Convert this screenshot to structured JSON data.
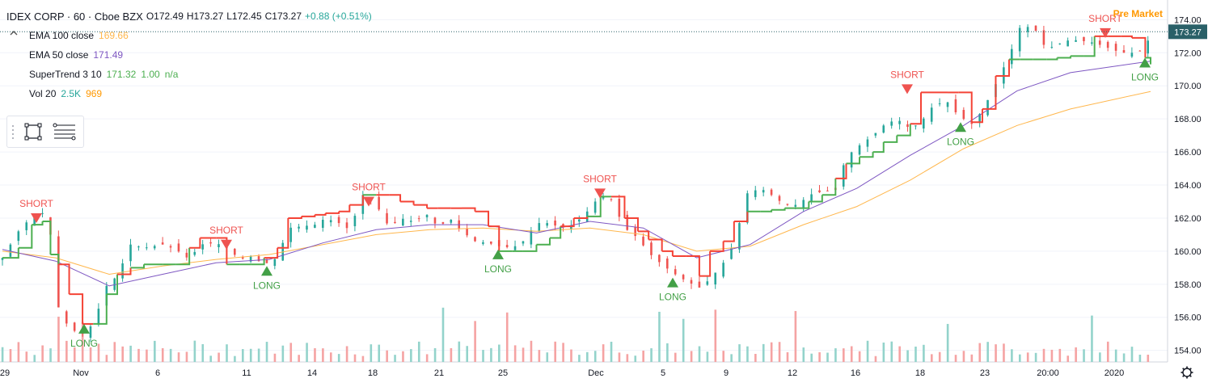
{
  "header": {
    "symbol_line": "IDEX CORP · 60 · Cboe BZX",
    "open": "O172.49",
    "high": "H173.27",
    "low": "L172.45",
    "close": "C173.27",
    "change": "+0.88 (+0.51%)"
  },
  "indicators": [
    {
      "label": "EMA 100 close",
      "values": [
        "169.66"
      ],
      "colors": [
        "#ffb74d"
      ]
    },
    {
      "label": "EMA 50 close",
      "values": [
        "171.49"
      ],
      "colors": [
        "#7e57c2"
      ]
    },
    {
      "label": "SuperTrend 3 10",
      "values": [
        "171.32",
        "1.00",
        "n/a"
      ],
      "colors": [
        "#4caf50",
        "#4caf50",
        "#4caf50"
      ]
    },
    {
      "label": "Vol 20",
      "values": [
        "2.5K",
        "969"
      ],
      "colors": [
        "#26a69a",
        "#ff9800"
      ]
    }
  ],
  "premarket_label": "Pre Market",
  "colors": {
    "up": "#26a69a",
    "down": "#ef5350",
    "up_vol": "#93d3cb",
    "down_vol": "#f5a3a3",
    "supertrend_up": "#4caf50",
    "supertrend_down": "#f44336",
    "ema100": "#ffb74d",
    "ema50": "#7e57c2",
    "price_tag": "#2a6068",
    "grid": "#f0f3fa",
    "axis_text": "#131722"
  },
  "icons": [
    "collapse-arrow-icon",
    "rectangle-tool-icon",
    "fib-tool-icon",
    "settings-gear-icon"
  ],
  "chart_data": {
    "type": "candlestick",
    "title": "IDEX CORP · 60 · Cboe BZX",
    "y_axis": {
      "ticks": [
        "174.00",
        "172.00",
        "170.00",
        "168.00",
        "166.00",
        "164.00",
        "162.00",
        "160.00",
        "158.00",
        "156.00",
        "154.00"
      ],
      "range": [
        153.3,
        174.8
      ],
      "position": "right"
    },
    "x_axis": {
      "ticks": [
        "29",
        "Nov",
        "6",
        "11",
        "14",
        "18",
        "21",
        "25",
        "Dec",
        "5",
        "9",
        "12",
        "16",
        "18",
        "23",
        "20:00",
        "2020"
      ]
    },
    "last_price_tag": "173.27",
    "signals": [
      {
        "label": "SHORT",
        "kind": "short",
        "near": "29",
        "price": 161.8
      },
      {
        "label": "LONG",
        "kind": "long",
        "near": "Nov",
        "price": 155.6
      },
      {
        "label": "SHORT",
        "kind": "short",
        "near": "6",
        "price": 160.2
      },
      {
        "label": "LONG",
        "kind": "long",
        "near": "11",
        "price": 159.1
      },
      {
        "label": "SHORT",
        "kind": "short",
        "near": "18",
        "price": 162.8
      },
      {
        "label": "LONG",
        "kind": "long",
        "near": "25",
        "price": 160.1
      },
      {
        "label": "SHORT",
        "kind": "short",
        "near": "Dec",
        "price": 163.3
      },
      {
        "label": "LONG",
        "kind": "long",
        "near": "5",
        "price": 158.4
      },
      {
        "label": "SHORT",
        "kind": "short",
        "near": "18",
        "price": 169.6
      },
      {
        "label": "LONG",
        "kind": "long",
        "near": "18",
        "price": 167.8
      },
      {
        "label": "SHORT",
        "kind": "short",
        "near": "20:00",
        "price": 173.0
      },
      {
        "label": "LONG",
        "kind": "long",
        "near": "2020",
        "price": 171.7
      }
    ],
    "price_path": [
      [
        0,
        159.6
      ],
      [
        6,
        161.2
      ],
      [
        11,
        162.1
      ],
      [
        15,
        162.3
      ],
      [
        18,
        161.0
      ],
      [
        21,
        156.6
      ],
      [
        25,
        155.3
      ],
      [
        30,
        155.0
      ],
      [
        34,
        155.6
      ],
      [
        39,
        157.9
      ],
      [
        43,
        158.5
      ],
      [
        48,
        160.4
      ],
      [
        53,
        160.2
      ],
      [
        60,
        160.4
      ],
      [
        65,
        160.1
      ],
      [
        70,
        159.5
      ],
      [
        74,
        160.4
      ],
      [
        80,
        160.5
      ],
      [
        84,
        160.2
      ],
      [
        89,
        159.5
      ],
      [
        93,
        159.7
      ],
      [
        98,
        159.2
      ],
      [
        103,
        159.6
      ],
      [
        107,
        161.4
      ],
      [
        112,
        161.5
      ],
      [
        117,
        161.6
      ],
      [
        121,
        162.0
      ],
      [
        126,
        161.7
      ],
      [
        130,
        161.3
      ],
      [
        135,
        163.4
      ],
      [
        140,
        162.8
      ],
      [
        145,
        161.4
      ],
      [
        149,
        162.0
      ],
      [
        154,
        161.8
      ],
      [
        159,
        162.2
      ],
      [
        163,
        161.5
      ],
      [
        168,
        161.9
      ],
      [
        172,
        161.2
      ],
      [
        177,
        160.6
      ],
      [
        182,
        160.5
      ],
      [
        186,
        160.3
      ],
      [
        191,
        160.2
      ],
      [
        195,
        160.6
      ],
      [
        200,
        161.7
      ],
      [
        205,
        161.7
      ],
      [
        209,
        161.4
      ],
      [
        214,
        161.6
      ],
      [
        219,
        162.4
      ],
      [
        224,
        163.4
      ],
      [
        228,
        163.1
      ],
      [
        233,
        161.4
      ],
      [
        238,
        160.8
      ],
      [
        242,
        159.9
      ],
      [
        247,
        159.2
      ],
      [
        251,
        158.7
      ],
      [
        256,
        158.2
      ],
      [
        261,
        157.8
      ],
      [
        265,
        158.3
      ],
      [
        270,
        159.3
      ],
      [
        274,
        160.5
      ],
      [
        279,
        163.5
      ],
      [
        284,
        163.8
      ],
      [
        288,
        163.4
      ],
      [
        293,
        162.8
      ],
      [
        298,
        162.8
      ],
      [
        302,
        163.4
      ],
      [
        307,
        163.6
      ],
      [
        312,
        163.7
      ],
      [
        316,
        165.7
      ],
      [
        321,
        166.4
      ],
      [
        326,
        167.0
      ],
      [
        330,
        167.6
      ],
      [
        335,
        168.0
      ],
      [
        340,
        167.4
      ],
      [
        344,
        167.8
      ],
      [
        349,
        168.9
      ],
      [
        354,
        169.0
      ],
      [
        358,
        168.2
      ],
      [
        363,
        167.7
      ],
      [
        367,
        168.5
      ],
      [
        372,
        170.1
      ],
      [
        377,
        171.8
      ],
      [
        381,
        173.5
      ],
      [
        386,
        173.6
      ],
      [
        391,
        172.2
      ],
      [
        395,
        172.5
      ],
      [
        400,
        172.8
      ],
      [
        405,
        172.7
      ],
      [
        409,
        172.6
      ],
      [
        414,
        172.3
      ],
      [
        419,
        172.0
      ],
      [
        423,
        172.0
      ],
      [
        428,
        172.2
      ],
      [
        430,
        173.27
      ]
    ],
    "supertrend_path": [
      [
        0,
        159.6
      ],
      [
        6,
        160.2
      ],
      [
        11,
        161.6
      ],
      [
        15,
        161.8
      ],
      [
        18,
        159.8
      ],
      [
        21,
        159.2
      ],
      [
        25,
        157.4
      ],
      [
        30,
        155.6
      ],
      [
        34,
        155.6
      ],
      [
        39,
        157.4
      ],
      [
        43,
        158.6
      ],
      [
        48,
        159.0
      ],
      [
        53,
        159.2
      ],
      [
        60,
        159.2
      ],
      [
        65,
        159.2
      ],
      [
        70,
        160.2
      ],
      [
        74,
        160.8
      ],
      [
        80,
        160.8
      ],
      [
        84,
        159.2
      ],
      [
        89,
        159.2
      ],
      [
        93,
        159.2
      ],
      [
        98,
        159.6
      ],
      [
        103,
        160.2
      ],
      [
        107,
        162.0
      ],
      [
        112,
        162.1
      ],
      [
        117,
        162.2
      ],
      [
        121,
        162.3
      ],
      [
        126,
        162.4
      ],
      [
        130,
        162.8
      ],
      [
        135,
        163.4
      ],
      [
        140,
        163.4
      ],
      [
        145,
        163.4
      ],
      [
        149,
        163.0
      ],
      [
        154,
        162.8
      ],
      [
        159,
        162.6
      ],
      [
        163,
        162.6
      ],
      [
        168,
        162.6
      ],
      [
        172,
        162.6
      ],
      [
        177,
        162.4
      ],
      [
        182,
        161.5
      ],
      [
        186,
        160.0
      ],
      [
        191,
        160.0
      ],
      [
        195,
        160.0
      ],
      [
        200,
        160.4
      ],
      [
        205,
        160.8
      ],
      [
        209,
        161.5
      ],
      [
        214,
        162.0
      ],
      [
        219,
        162.1
      ],
      [
        224,
        163.3
      ],
      [
        228,
        163.3
      ],
      [
        233,
        162.0
      ],
      [
        238,
        161.2
      ],
      [
        242,
        160.7
      ],
      [
        247,
        160.0
      ],
      [
        251,
        159.7
      ],
      [
        256,
        159.7
      ],
      [
        261,
        158.5
      ],
      [
        265,
        160.0
      ],
      [
        270,
        160.6
      ],
      [
        274,
        161.8
      ],
      [
        279,
        162.4
      ],
      [
        284,
        162.4
      ],
      [
        288,
        162.5
      ],
      [
        293,
        162.6
      ],
      [
        302,
        163.0
      ],
      [
        307,
        163.4
      ],
      [
        312,
        164.4
      ],
      [
        316,
        165.3
      ],
      [
        321,
        165.7
      ],
      [
        326,
        166.0
      ],
      [
        330,
        166.6
      ],
      [
        335,
        167.0
      ],
      [
        340,
        167.7
      ],
      [
        344,
        169.6
      ],
      [
        349,
        169.6
      ],
      [
        354,
        169.6
      ],
      [
        358,
        169.6
      ],
      [
        363,
        167.8
      ],
      [
        367,
        168.6
      ],
      [
        372,
        170.6
      ],
      [
        377,
        171.6
      ],
      [
        381,
        171.6
      ],
      [
        386,
        171.6
      ],
      [
        391,
        171.6
      ],
      [
        395,
        171.7
      ],
      [
        400,
        171.8
      ],
      [
        405,
        171.8
      ],
      [
        409,
        173.0
      ],
      [
        414,
        173.0
      ],
      [
        419,
        173.0
      ],
      [
        423,
        172.9
      ],
      [
        428,
        171.7
      ],
      [
        430,
        171.3
      ]
    ],
    "ema100_path": [
      [
        0,
        160.0
      ],
      [
        20,
        159.6
      ],
      [
        40,
        158.6
      ],
      [
        60,
        159.1
      ],
      [
        80,
        159.5
      ],
      [
        100,
        159.8
      ],
      [
        120,
        160.4
      ],
      [
        140,
        161.0
      ],
      [
        160,
        161.3
      ],
      [
        180,
        161.4
      ],
      [
        200,
        161.2
      ],
      [
        220,
        161.4
      ],
      [
        240,
        161.0
      ],
      [
        260,
        160.0
      ],
      [
        280,
        160.3
      ],
      [
        300,
        161.6
      ],
      [
        320,
        162.7
      ],
      [
        340,
        164.3
      ],
      [
        360,
        166.2
      ],
      [
        380,
        167.6
      ],
      [
        400,
        168.6
      ],
      [
        430,
        169.66
      ]
    ],
    "ema50_path": [
      [
        0,
        160.1
      ],
      [
        20,
        159.4
      ],
      [
        40,
        157.9
      ],
      [
        60,
        158.6
      ],
      [
        80,
        159.3
      ],
      [
        100,
        159.5
      ],
      [
        120,
        160.5
      ],
      [
        140,
        161.3
      ],
      [
        160,
        161.6
      ],
      [
        180,
        161.6
      ],
      [
        200,
        161.1
      ],
      [
        220,
        161.8
      ],
      [
        240,
        161.4
      ],
      [
        260,
        159.6
      ],
      [
        280,
        160.4
      ],
      [
        300,
        162.4
      ],
      [
        320,
        163.8
      ],
      [
        340,
        165.8
      ],
      [
        360,
        167.6
      ],
      [
        380,
        169.7
      ],
      [
        400,
        170.8
      ],
      [
        430,
        171.49
      ]
    ],
    "volume": {
      "max_units": 100,
      "scale_note": "relative height"
    }
  }
}
